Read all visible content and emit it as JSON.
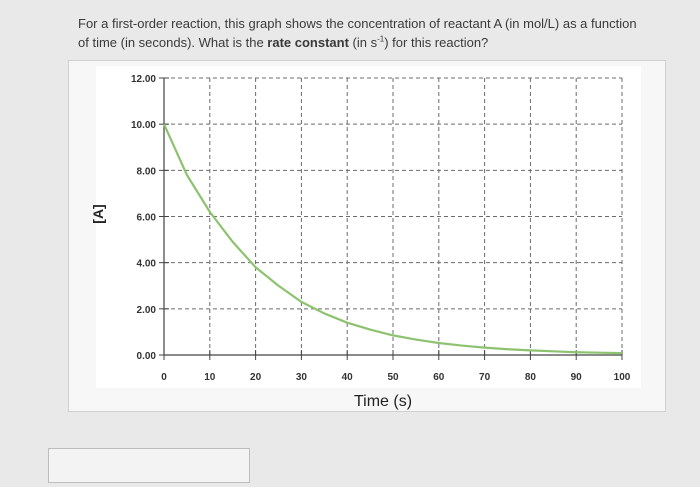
{
  "question": {
    "part1": "For a first-order reaction, this graph shows the concentration of reactant A (in mol/L) as a function of time (in seconds). What is the ",
    "bold": "rate constant",
    "part2": " (in s",
    "sup": "-1",
    "part3": ") for this reaction?"
  },
  "answer": {
    "value": ""
  },
  "chart_data": {
    "type": "line",
    "title": "",
    "xlabel": "Time (s)",
    "ylabel": "[A]",
    "xlim": [
      0,
      100
    ],
    "ylim": [
      0,
      12
    ],
    "x_ticks": [
      "0",
      "10",
      "20",
      "30",
      "40",
      "50",
      "60",
      "70",
      "80",
      "90",
      "100"
    ],
    "y_ticks": [
      "0.00",
      "2.00",
      "4.00",
      "6.00",
      "8.00",
      "10.00",
      "12.00"
    ],
    "grid": true,
    "series": [
      {
        "color": "#8dc26f",
        "x": [
          0,
          5,
          10,
          15,
          20,
          25,
          30,
          35,
          40,
          45,
          50,
          55,
          60,
          65,
          70,
          75,
          80,
          85,
          90,
          95,
          100
        ],
        "y": [
          10.0,
          7.8,
          6.2,
          4.9,
          3.8,
          3.0,
          2.3,
          1.8,
          1.4,
          1.1,
          0.85,
          0.67,
          0.52,
          0.41,
          0.32,
          0.25,
          0.2,
          0.16,
          0.12,
          0.1,
          0.08
        ]
      }
    ]
  }
}
